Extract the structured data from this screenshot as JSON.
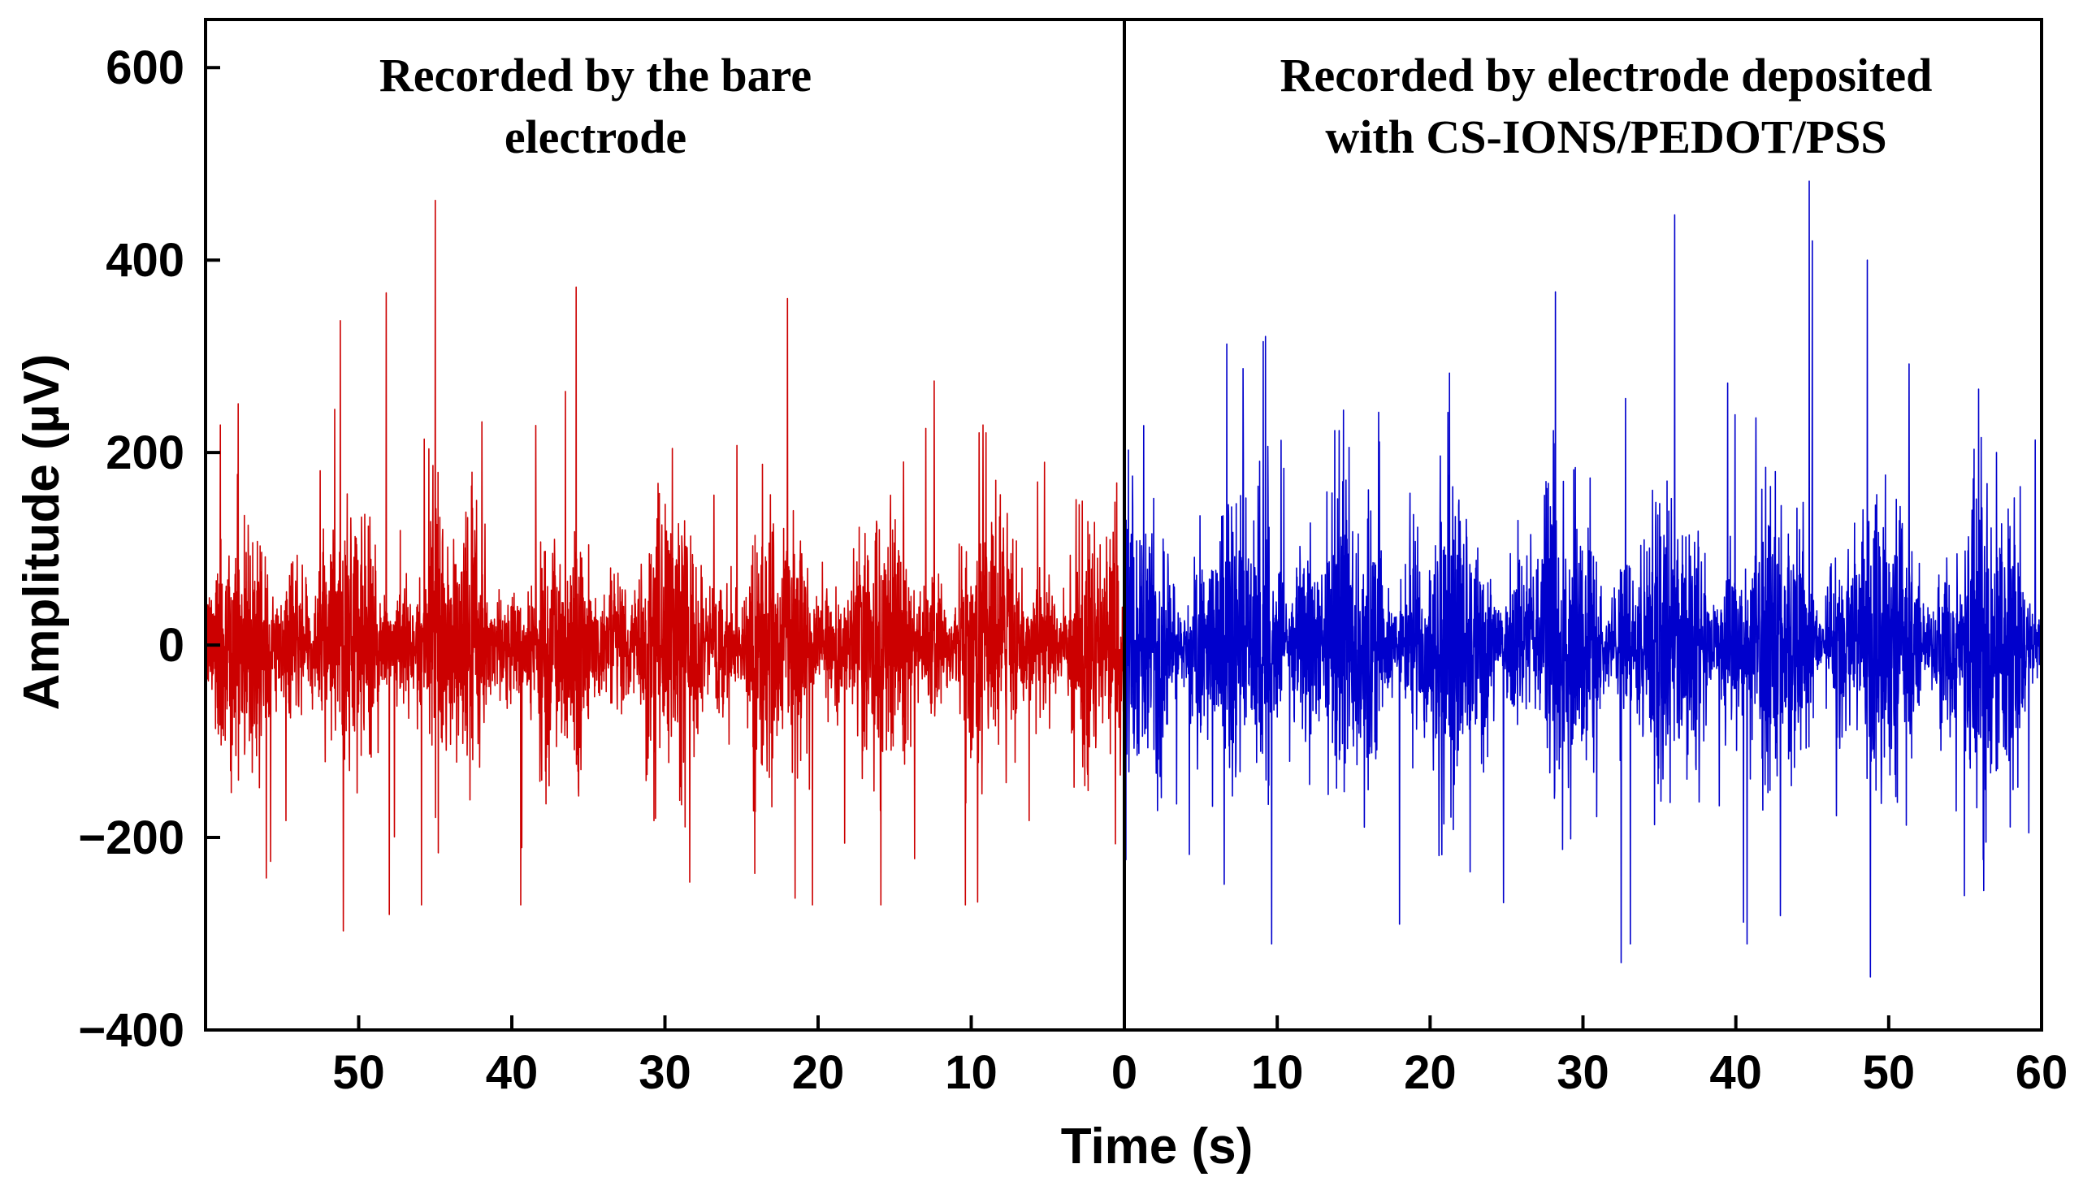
{
  "chart_data": {
    "type": "line",
    "title": "",
    "xlabel": "Time (s)",
    "ylabel": "Amplitude (µV)",
    "ylim": [
      -400,
      650
    ],
    "grid": false,
    "y_ticks": [
      -400,
      -200,
      0,
      200,
      400,
      600
    ],
    "y_tick_labels": [
      "−400",
      "−200",
      "0",
      "200",
      "400",
      "600"
    ],
    "panels": [
      {
        "name": "bare",
        "label_lines": [
          "Recorded by the bare",
          "electrode"
        ],
        "color": "#cc0000",
        "x_direction": "descending",
        "xlim": [
          60,
          0
        ],
        "x_ticks": [
          50,
          40,
          30,
          20,
          10,
          0
        ],
        "x_tick_labels": [
          "50",
          "40",
          "30",
          "20",
          "10",
          "0"
        ],
        "y_range_observed": [
          -300,
          465
        ],
        "typical_amplitude": 80,
        "peaks": [
          {
            "t": 45,
            "value": 462
          },
          {
            "t": 35.8,
            "value": 372
          },
          {
            "t": 48.2,
            "value": 366
          },
          {
            "t": 51.2,
            "value": 337
          },
          {
            "t": 22,
            "value": 360
          },
          {
            "t": 51,
            "value": -297
          },
          {
            "t": 48,
            "value": -280
          },
          {
            "t": 13.7,
            "value": -222
          },
          {
            "t": 21.5,
            "value": -263
          }
        ]
      },
      {
        "name": "CS-IONS/PEDOT/PSS",
        "label_lines": [
          "Recorded by electrode deposited",
          "with CS-IONS/PEDOT/PSS"
        ],
        "color": "#0000cc",
        "x_direction": "ascending",
        "xlim": [
          0,
          60
        ],
        "x_ticks": [
          0,
          10,
          20,
          30,
          40,
          50,
          60
        ],
        "x_tick_labels": [
          "0",
          "10",
          "20",
          "30",
          "40",
          "50",
          "60"
        ],
        "y_range_observed": [
          -345,
          482
        ],
        "typical_amplitude": 95,
        "peaks": [
          {
            "t": 44.8,
            "value": 482
          },
          {
            "t": 36,
            "value": 447
          },
          {
            "t": 48.6,
            "value": 400
          },
          {
            "t": 45,
            "value": 420
          },
          {
            "t": 28.2,
            "value": 367
          },
          {
            "t": 48.8,
            "value": -345
          },
          {
            "t": 32.5,
            "value": -330
          },
          {
            "t": 40.5,
            "value": -288
          },
          {
            "t": 18,
            "value": -290
          }
        ]
      }
    ]
  }
}
